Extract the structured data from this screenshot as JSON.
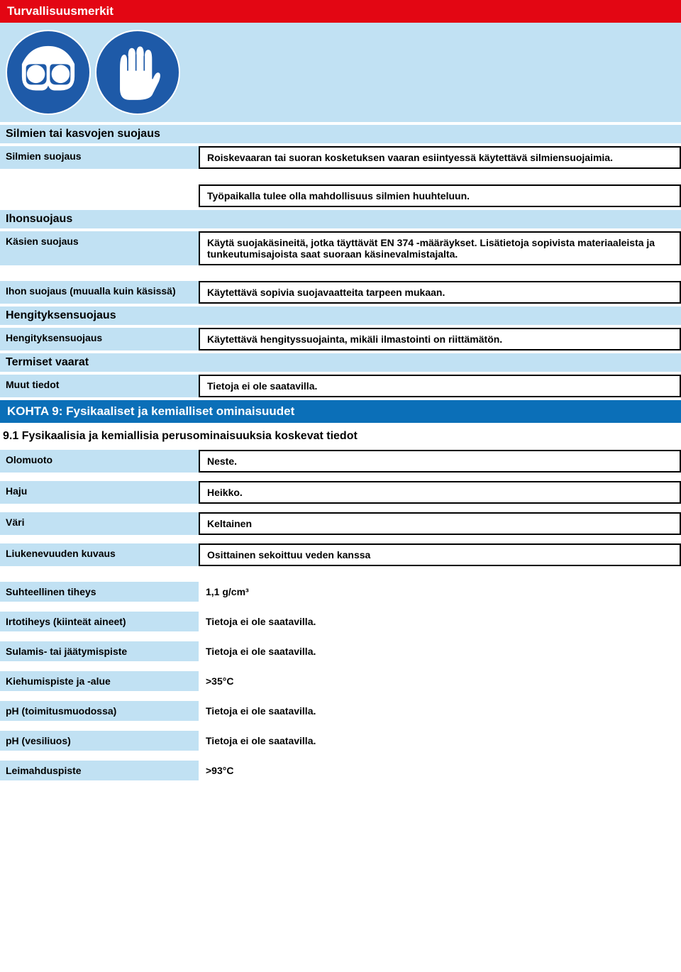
{
  "colors": {
    "red": "#e30613",
    "blue": "#0b6fb8",
    "lightblue": "#c1e1f3",
    "iconblue": "#1e5aa8",
    "white": "#ffffff",
    "black": "#000000"
  },
  "header1": "Turvallisuusmerkit",
  "section_eye": {
    "title": "Silmien tai kasvojen suojaus",
    "row1_label": "Silmien suojaus",
    "row1_value": "Roiskevaaran tai suoran kosketuksen vaaran esiintyessä käytettävä silmiensuojaimia.",
    "row2_value": "Työpaikalla tulee olla mahdollisuus silmien huuhteluun."
  },
  "section_skin": {
    "title": "Ihonsuojaus",
    "row1_label": "Käsien suojaus",
    "row1_value": "Käytä suojakäsineitä, jotka täyttävät EN 374 -määräykset. Lisätietoja sopivista materiaaleista ja tunkeutumisajoista saat suoraan käsinevalmistajalta.",
    "row2_label": "Ihon suojaus (muualla kuin käsissä)",
    "row2_value": "Käytettävä sopivia suojavaatteita tarpeen mukaan."
  },
  "section_resp": {
    "title": "Hengityksensuojaus",
    "row1_label": "Hengityksensuojaus",
    "row1_value": "Käytettävä hengityssuojainta, mikäli ilmastointi on riittämätön."
  },
  "section_thermal": {
    "title": "Termiset vaarat",
    "row1_label": "Muut tiedot",
    "row1_value": "Tietoja ei ole saatavilla."
  },
  "kohta9": {
    "header": "KOHTA 9: Fysikaaliset ja kemialliset ominaisuudet",
    "subheading": "9.1 Fysikaalisia ja kemiallisia perusominaisuuksia koskevat tiedot",
    "rows": [
      {
        "label": "Olomuoto",
        "value": "Neste.",
        "boxed": true
      },
      {
        "label": "Haju",
        "value": "Heikko.",
        "boxed": true
      },
      {
        "label": "Väri",
        "value": "Keltainen",
        "boxed": true
      },
      {
        "label": "Liukenevuuden kuvaus",
        "value": "Osittainen sekoittuu veden kanssa",
        "boxed": true
      },
      {
        "label": "Suhteellinen tiheys",
        "value": "1,1 g/cm³",
        "boxed": false
      },
      {
        "label": "Irtotiheys (kiinteät aineet)",
        "value": "Tietoja ei ole saatavilla.",
        "boxed": false
      },
      {
        "label": "Sulamis- tai jäätymispiste",
        "value": "Tietoja ei ole saatavilla.",
        "boxed": false
      },
      {
        "label": "Kiehumispiste ja -alue",
        "value": ">35°C",
        "boxed": false
      },
      {
        "label": "pH (toimitusmuodossa)",
        "value": "Tietoja ei ole saatavilla.",
        "boxed": false
      },
      {
        "label": "pH (vesiliuos)",
        "value": "Tietoja ei ole saatavilla.",
        "boxed": false
      },
      {
        "label": "Leimahduspiste",
        "value": ">93°C",
        "boxed": false
      }
    ]
  }
}
